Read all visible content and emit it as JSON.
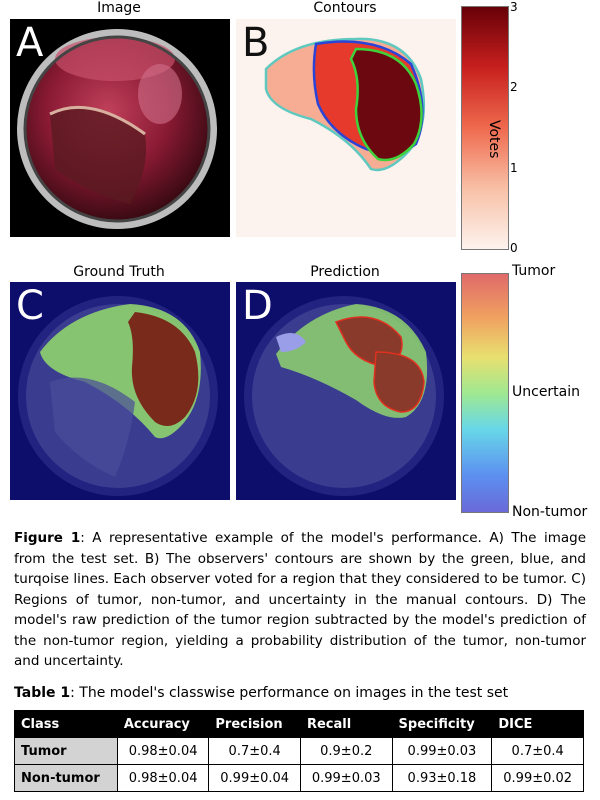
{
  "panels": {
    "a": {
      "title": "Image",
      "letter": "A"
    },
    "b": {
      "title": "Contours",
      "letter": "B"
    },
    "c": {
      "title": "Ground Truth",
      "letter": "C"
    },
    "d": {
      "title": "Prediction",
      "letter": "D"
    }
  },
  "colorbar_votes": {
    "label": "Votes",
    "ticks": [
      "3",
      "2",
      "1",
      "0"
    ]
  },
  "colorbar_class": {
    "top": "Tumor",
    "middle": "Uncertain",
    "bottom": "Non-tumor"
  },
  "caption": {
    "label": "Figure 1",
    "text": ": A representative example of the model's performance. A) The image from the test set. B) The observers' contours are shown by the green, blue, and turqoise lines. Each observer voted for a region that they considered to be tumor. C) Regions of tumor, non-tumor, and uncertainty in the manual contours. D) The model's raw prediction of the tumor region subtracted by the model's prediction of the non-tumor region, yielding a probability distribution of the tumor, non-tumor and uncertainty."
  },
  "table": {
    "label": "Table 1",
    "title": ": The model's classwise performance on images in the test set",
    "headers": [
      "Class",
      "Accuracy",
      "Precision",
      "Recall",
      "Specificity",
      "DICE"
    ],
    "rows": [
      [
        "Tumor",
        "0.98±0.04",
        "0.7±0.4",
        "0.9±0.2",
        "0.99±0.03",
        "0.7±0.4"
      ],
      [
        "Non-tumor",
        "0.98±0.04",
        "0.99±0.04",
        "0.99±0.03",
        "0.93±0.18",
        "0.99±0.02"
      ]
    ]
  }
}
